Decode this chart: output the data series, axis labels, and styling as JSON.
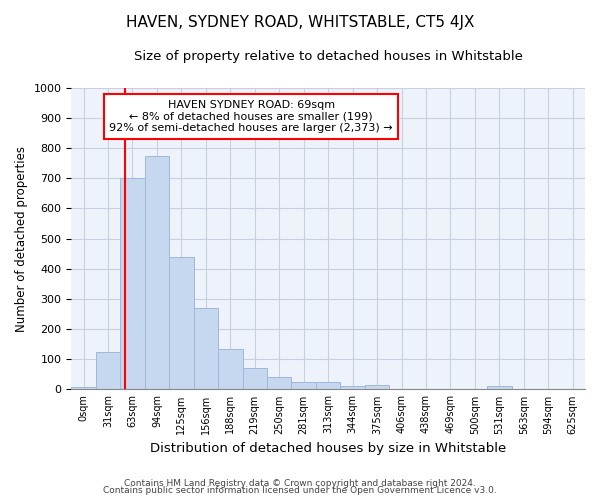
{
  "title": "HAVEN, SYDNEY ROAD, WHITSTABLE, CT5 4JX",
  "subtitle": "Size of property relative to detached houses in Whitstable",
  "xlabel": "Distribution of detached houses by size in Whitstable",
  "ylabel": "Number of detached properties",
  "categories": [
    "0sqm",
    "31sqm",
    "63sqm",
    "94sqm",
    "125sqm",
    "156sqm",
    "188sqm",
    "219sqm",
    "250sqm",
    "281sqm",
    "313sqm",
    "344sqm",
    "375sqm",
    "406sqm",
    "438sqm",
    "469sqm",
    "500sqm",
    "531sqm",
    "563sqm",
    "594sqm",
    "625sqm"
  ],
  "values": [
    8,
    125,
    700,
    775,
    440,
    270,
    133,
    70,
    40,
    25,
    23,
    12,
    15,
    0,
    0,
    0,
    0,
    10,
    0,
    0,
    0
  ],
  "bar_color": "#c5d8ef",
  "bar_edge_color": "#a0b8d8",
  "ylim": [
    0,
    1000
  ],
  "yticks": [
    0,
    100,
    200,
    300,
    400,
    500,
    600,
    700,
    800,
    900,
    1000
  ],
  "annotation_title": "HAVEN SYDNEY ROAD: 69sqm",
  "annotation_line1": "← 8% of detached houses are smaller (199)",
  "annotation_line2": "92% of semi-detached houses are larger (2,373) →",
  "footer1": "Contains HM Land Registry data © Crown copyright and database right 2024.",
  "footer2": "Contains public sector information licensed under the Open Government Licence v3.0.",
  "bg_color": "#eef2fb",
  "grid_color": "#c8d0e0",
  "title_fontsize": 11,
  "subtitle_fontsize": 9.5,
  "ylabel_fontsize": 8.5,
  "xlabel_fontsize": 9.5
}
